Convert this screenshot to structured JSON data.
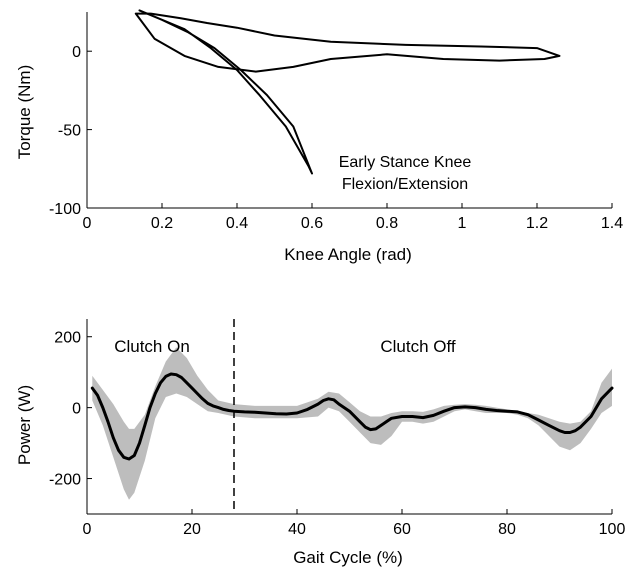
{
  "chart_data": [
    {
      "type": "line",
      "title": "",
      "xlabel": "Knee Angle (rad)",
      "ylabel": "Torque (Nm)",
      "xlim": [
        0,
        1.4
      ],
      "ylim": [
        -100,
        25
      ],
      "xticks": [
        "0",
        "0.2",
        "0.4",
        "0.6",
        "0.8",
        "1",
        "1.2",
        "1.4"
      ],
      "yticks": [
        "0",
        "-50",
        "-100"
      ],
      "grid": false,
      "annotation": [
        "Early Stance Knee",
        "Flexion/Extension"
      ],
      "series": [
        {
          "x": [
            0.13,
            0.17,
            0.25,
            0.32,
            0.4,
            0.5,
            0.65,
            0.85,
            1.05,
            1.2,
            1.26,
            1.22,
            1.1,
            0.95,
            0.8,
            0.65,
            0.55,
            0.45,
            0.35,
            0.26,
            0.18,
            0.13
          ],
          "y": [
            24,
            24,
            21,
            18,
            15,
            10,
            6,
            4,
            3,
            2,
            -3,
            -5,
            -6,
            -5,
            -2,
            -5,
            -10,
            -13,
            -10,
            -3,
            8,
            24
          ]
        },
        {
          "x": [
            0.14,
            0.2,
            0.27,
            0.34,
            0.41,
            0.48,
            0.55,
            0.6,
            0.59,
            0.53,
            0.46,
            0.4,
            0.33,
            0.26,
            0.2,
            0.16,
            0.14
          ],
          "y": [
            26,
            20,
            12,
            2,
            -12,
            -28,
            -48,
            -78,
            -73,
            -48,
            -28,
            -12,
            2,
            14,
            20,
            24,
            26
          ]
        }
      ]
    },
    {
      "type": "line",
      "title": "",
      "xlabel": "Gait Cycle (%)",
      "ylabel": "Power (W)",
      "xlim": [
        0,
        100
      ],
      "ylim": [
        -300,
        250
      ],
      "xticks": [
        "0",
        "20",
        "40",
        "60",
        "80",
        "100"
      ],
      "yticks": [
        "200",
        "0",
        "-200"
      ],
      "grid": false,
      "annotations": [
        "Clutch On",
        "Clutch Off"
      ],
      "vline_x": 28,
      "series": [
        {
          "x": [
            1,
            2,
            3,
            4,
            5,
            6,
            7,
            8,
            9,
            10,
            11,
            12,
            13,
            14,
            15,
            16,
            17,
            18,
            19,
            20,
            21,
            22,
            23,
            24,
            25,
            26,
            27,
            28,
            30,
            32,
            34,
            36,
            38,
            40,
            42,
            44,
            45,
            46,
            47,
            48,
            50,
            52,
            53,
            54,
            55,
            56,
            57,
            58,
            60,
            62,
            64,
            66,
            68,
            70,
            72,
            74,
            76,
            78,
            80,
            82,
            84,
            86,
            88,
            90,
            91,
            92,
            93,
            94,
            96,
            98,
            100
          ],
          "y": [
            55,
            35,
            0,
            -40,
            -85,
            -120,
            -140,
            -145,
            -135,
            -100,
            -50,
            0,
            40,
            70,
            88,
            95,
            93,
            85,
            70,
            55,
            40,
            25,
            12,
            5,
            0,
            -5,
            -8,
            -10,
            -12,
            -13,
            -15,
            -17,
            -18,
            -15,
            -5,
            10,
            20,
            25,
            22,
            10,
            -10,
            -40,
            -55,
            -62,
            -60,
            -50,
            -40,
            -30,
            -25,
            -25,
            -28,
            -22,
            -10,
            0,
            2,
            0,
            -5,
            -8,
            -10,
            -12,
            -20,
            -35,
            -50,
            -65,
            -70,
            -70,
            -65,
            -55,
            -25,
            25,
            55
          ]
        }
      ],
      "band": {
        "x": [
          1,
          3,
          5,
          7,
          8,
          9,
          11,
          13,
          15,
          17,
          19,
          21,
          23,
          25,
          28,
          32,
          36,
          40,
          44,
          46,
          48,
          50,
          52,
          54,
          56,
          58,
          60,
          62,
          64,
          66,
          68,
          70,
          72,
          74,
          76,
          78,
          80,
          82,
          84,
          86,
          88,
          90,
          92,
          94,
          96,
          98,
          100
        ],
        "upper": [
          90,
          50,
          10,
          -40,
          -60,
          -60,
          -20,
          60,
          130,
          170,
          140,
          90,
          50,
          20,
          10,
          5,
          5,
          5,
          25,
          45,
          40,
          15,
          -10,
          -25,
          -25,
          -15,
          -10,
          -10,
          -12,
          -5,
          5,
          8,
          10,
          8,
          5,
          0,
          -5,
          -10,
          -15,
          -20,
          -30,
          -40,
          -45,
          -40,
          -10,
          70,
          110
        ],
        "lower": [
          20,
          -50,
          -140,
          -230,
          -260,
          -240,
          -150,
          -30,
          30,
          40,
          30,
          10,
          -10,
          -15,
          -25,
          -30,
          -30,
          -30,
          -25,
          0,
          -10,
          -40,
          -70,
          -100,
          -105,
          -80,
          -40,
          -40,
          -45,
          -40,
          -25,
          -10,
          -5,
          -10,
          -15,
          -15,
          -15,
          -20,
          -30,
          -50,
          -80,
          -110,
          -120,
          -100,
          -60,
          -15,
          5
        ]
      }
    }
  ]
}
